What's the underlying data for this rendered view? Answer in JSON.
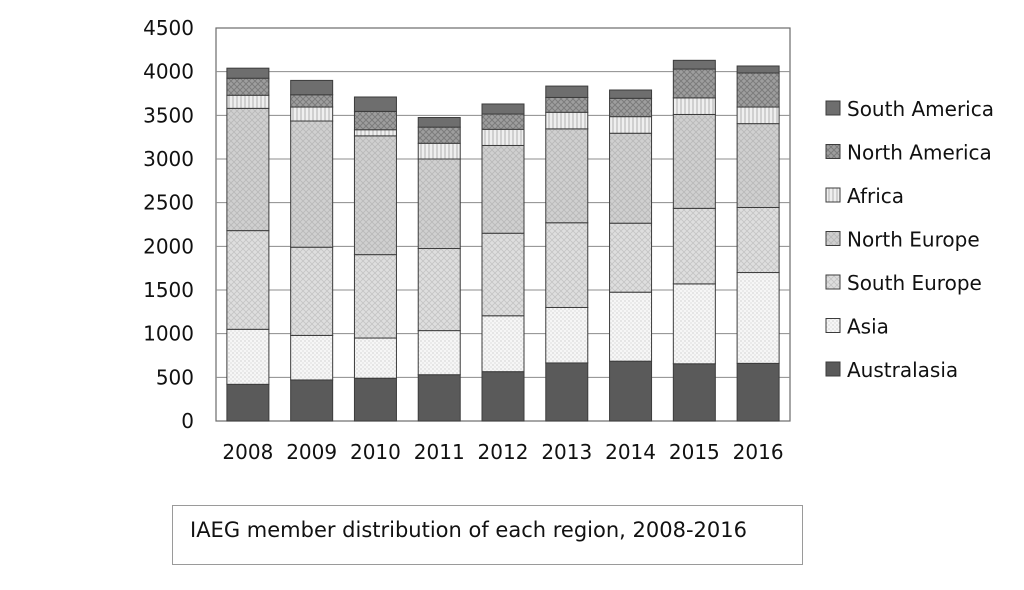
{
  "chart_data": {
    "type": "bar",
    "stacked": true,
    "categories": [
      "2008",
      "2009",
      "2010",
      "2011",
      "2012",
      "2013",
      "2014",
      "2015",
      "2016"
    ],
    "ylim": [
      0,
      4500
    ],
    "yticks": [
      "0",
      "500",
      "1000",
      "1500",
      "2000",
      "2500",
      "3000",
      "3500",
      "4000",
      "4500"
    ],
    "grid": true,
    "legend_position": "right",
    "series": [
      {
        "name": "Australasia",
        "color": "#5a5a5a",
        "pattern": "solid",
        "values": [
          420,
          470,
          490,
          530,
          565,
          665,
          685,
          655,
          660
        ]
      },
      {
        "name": "Asia",
        "color": "#f4f4f4",
        "pattern": "dots",
        "values": [
          630,
          510,
          460,
          505,
          640,
          635,
          790,
          915,
          1040
        ]
      },
      {
        "name": "South Europe",
        "color": "#d8d8d8",
        "pattern": "crosshatch",
        "values": [
          1130,
          1010,
          955,
          940,
          945,
          970,
          790,
          865,
          745
        ]
      },
      {
        "name": "North Europe",
        "color": "#cfcfcf",
        "pattern": "crosshatch",
        "values": [
          1400,
          1445,
          1360,
          1025,
          1005,
          1075,
          1030,
          1075,
          960
        ]
      },
      {
        "name": "Africa",
        "color": "#ececec",
        "pattern": "stripes",
        "values": [
          150,
          160,
          70,
          180,
          185,
          190,
          190,
          190,
          190
        ]
      },
      {
        "name": "North America",
        "color": "#a6a6a6",
        "pattern": "crosshatch",
        "values": [
          195,
          140,
          210,
          185,
          175,
          170,
          210,
          330,
          390
        ]
      },
      {
        "name": "South America",
        "color": "#6e6e6e",
        "pattern": "solid",
        "values": [
          115,
          165,
          165,
          110,
          115,
          130,
          95,
          100,
          80
        ]
      }
    ]
  },
  "caption": "IAEG member distribution of each region, 2008-2016"
}
